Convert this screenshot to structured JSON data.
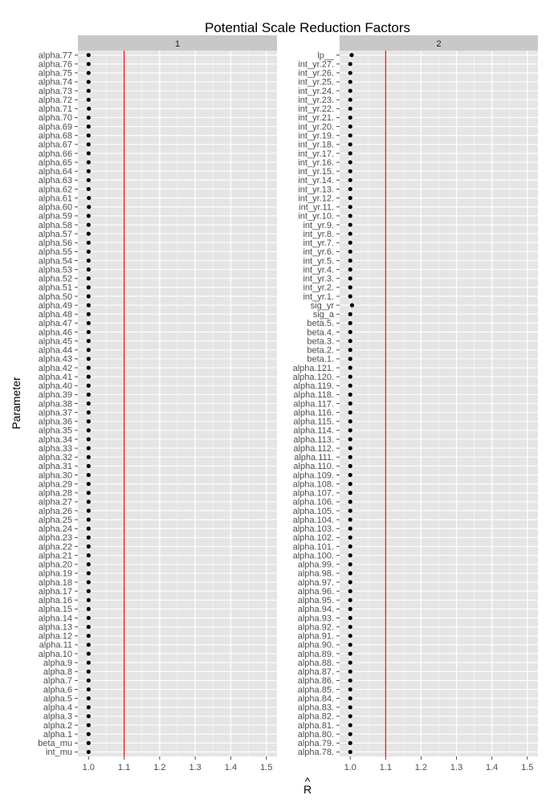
{
  "chart_data": {
    "type": "scatter",
    "title": "Potential Scale Reduction Factors",
    "xlabel_glyph": "R",
    "xlabel_hat": "^",
    "ylabel": "Parameter",
    "xlim": [
      0.97,
      1.53
    ],
    "xticks": [
      "1.0",
      "1.1",
      "1.2",
      "1.3",
      "1.4",
      "1.5"
    ],
    "xtick_values": [
      1.0,
      1.1,
      1.2,
      1.3,
      1.4,
      1.5
    ],
    "reference_line": 1.1,
    "reference_color": "#ff0000",
    "point_color": "#000000",
    "panel_background": "#e5e5e5",
    "strip_background": "#c8c8c8",
    "grid": true,
    "panels": [
      {
        "label": "1",
        "parameters": [
          "alpha.77",
          "alpha.76",
          "alpha.75",
          "alpha.74",
          "alpha.73",
          "alpha.72",
          "alpha.71",
          "alpha.70",
          "alpha.69",
          "alpha.68",
          "alpha.67",
          "alpha.66",
          "alpha.65",
          "alpha.64",
          "alpha.63",
          "alpha.62",
          "alpha.61",
          "alpha.60",
          "alpha.59",
          "alpha.58",
          "alpha.57",
          "alpha.56",
          "alpha.55",
          "alpha.54",
          "alpha.53",
          "alpha.52",
          "alpha.51",
          "alpha.50",
          "alpha.49",
          "alpha.48",
          "alpha.47",
          "alpha.46",
          "alpha.45",
          "alpha.44",
          "alpha.43",
          "alpha.42",
          "alpha.41",
          "alpha.40",
          "alpha.39",
          "alpha.38",
          "alpha.37",
          "alpha.36",
          "alpha.35",
          "alpha.34",
          "alpha.33",
          "alpha.32",
          "alpha.31",
          "alpha.30",
          "alpha.29",
          "alpha.28",
          "alpha.27",
          "alpha.26",
          "alpha.25",
          "alpha.24",
          "alpha.23",
          "alpha.22",
          "alpha.21",
          "alpha.20",
          "alpha.19",
          "alpha.18",
          "alpha.17",
          "alpha.16",
          "alpha.15",
          "alpha.14",
          "alpha.13",
          "alpha.12",
          "alpha.11",
          "alpha.10",
          "alpha.9",
          "alpha.8",
          "alpha.7",
          "alpha.6",
          "alpha.5",
          "alpha.4",
          "alpha.3",
          "alpha.2",
          "alpha.1",
          "beta_mu",
          "int_mu"
        ],
        "values": [
          1.0,
          1.0,
          1.0,
          1.0,
          1.0,
          1.0,
          1.001,
          1.0,
          1.0,
          1.0,
          1.0,
          1.0,
          1.0,
          1.0,
          1.0,
          1.0,
          1.001,
          1.001,
          1.0,
          1.0,
          1.0,
          1.0,
          1.0,
          1.0,
          1.0,
          1.0,
          1.0,
          1.0,
          1.0,
          1.0,
          1.0,
          1.0,
          1.0,
          1.0,
          1.0,
          1.0,
          1.0,
          1.0,
          1.0,
          1.0,
          1.0,
          1.0,
          1.0,
          1.0,
          1.0,
          1.0,
          1.0,
          1.0,
          1.0,
          1.0,
          1.0,
          1.0,
          1.0,
          1.0,
          1.0,
          1.0,
          1.0,
          1.0,
          1.0,
          1.0,
          1.0,
          1.0,
          1.0,
          1.0,
          1.0,
          1.0,
          1.0,
          1.0,
          1.0,
          1.0,
          1.0,
          1.0,
          1.0,
          1.0,
          1.0,
          1.0,
          1.0,
          1.0,
          1.0
        ]
      },
      {
        "label": "2",
        "parameters": [
          "lp__",
          "int_yr.27.",
          "int_yr.26.",
          "int_yr.25.",
          "int_yr.24.",
          "int_yr.23.",
          "int_yr.22.",
          "int_yr.21.",
          "int_yr.20.",
          "int_yr.19.",
          "int_yr.18.",
          "int_yr.17.",
          "int_yr.16.",
          "int_yr.15.",
          "int_yr.14.",
          "int_yr.13.",
          "int_yr.12.",
          "int_yr.11.",
          "int_yr.10.",
          "int_yr.9.",
          "int_yr.8.",
          "int_yr.7.",
          "int_yr.6.",
          "int_yr.5.",
          "int_yr.4.",
          "int_yr.3.",
          "int_yr.2.",
          "int_yr.1.",
          "sig_yr",
          "sig_a",
          "beta.5.",
          "beta.4.",
          "beta.3.",
          "beta.2.",
          "beta.1.",
          "alpha.121.",
          "alpha.120.",
          "alpha.119.",
          "alpha.118.",
          "alpha.117.",
          "alpha.116.",
          "alpha.115.",
          "alpha.114.",
          "alpha.113.",
          "alpha.112.",
          "alpha.111.",
          "alpha.110.",
          "alpha.109.",
          "alpha.108.",
          "alpha.107.",
          "alpha.106.",
          "alpha.105.",
          "alpha.104.",
          "alpha.103.",
          "alpha.102.",
          "alpha.101.",
          "alpha.100.",
          "alpha.99.",
          "alpha.98.",
          "alpha.97.",
          "alpha.96.",
          "alpha.95.",
          "alpha.94.",
          "alpha.93.",
          "alpha.92.",
          "alpha.91.",
          "alpha.90.",
          "alpha.89.",
          "alpha.88.",
          "alpha.87.",
          "alpha.86.",
          "alpha.85.",
          "alpha.84.",
          "alpha.83.",
          "alpha.82.",
          "alpha.81.",
          "alpha.80.",
          "alpha.79.",
          "alpha.78."
        ],
        "values": [
          1.004,
          1.0,
          1.0,
          1.0,
          1.0,
          1.0,
          1.0,
          1.0,
          1.0,
          1.0,
          1.0,
          1.0,
          1.0,
          1.0,
          1.0,
          1.0,
          1.0,
          1.0,
          1.0,
          1.0,
          1.0,
          1.0,
          1.0,
          1.0,
          1.0,
          1.0,
          1.0,
          1.0,
          1.005,
          1.0,
          1.0,
          1.0,
          1.0,
          1.0,
          1.0,
          1.0,
          1.0,
          1.0,
          1.0,
          1.0,
          1.0,
          1.0,
          1.0,
          1.0,
          1.0,
          1.0,
          1.0,
          1.0,
          1.0,
          1.0,
          1.0,
          1.0,
          1.0,
          1.0,
          1.0,
          1.0,
          1.0,
          1.0,
          1.0,
          1.0,
          1.0,
          1.0,
          1.0,
          1.0,
          1.0,
          1.0,
          1.0,
          1.0,
          1.0,
          1.0,
          1.0,
          1.0,
          1.0,
          1.0,
          1.0,
          1.0,
          1.0,
          1.0,
          1.0
        ]
      }
    ]
  }
}
